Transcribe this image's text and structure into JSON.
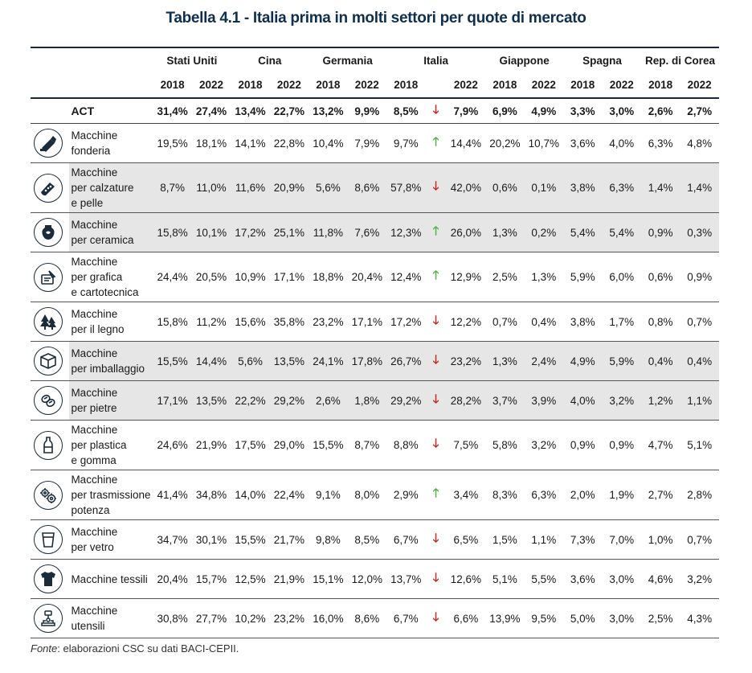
{
  "title": "Tabella 4.1 - Italia prima in molti settori per quote di mercato",
  "countries": [
    "Stati Uniti",
    "Cina",
    "Germania",
    "Italia",
    "Giappone",
    "Spagna",
    "Rep. di Corea"
  ],
  "year_a": "2018",
  "year_b": "2022",
  "act": {
    "label": "ACT",
    "arrow": "down",
    "values": [
      "31,4%",
      "27,4%",
      "13,4%",
      "22,7%",
      "13,2%",
      "9,9%",
      "8,5%",
      "7,9%",
      "6,9%",
      "4,9%",
      "3,3%",
      "3,0%",
      "2,6%",
      "2,7%"
    ]
  },
  "rows": [
    {
      "name_lines": [
        "Macchine",
        "fonderia"
      ],
      "icon": "foundry-icon",
      "arrow": "up",
      "shade": false,
      "values": [
        "19,5%",
        "18,1%",
        "14,1%",
        "22,8%",
        "10,4%",
        "7,9%",
        "9,7%",
        "14,4%",
        "20,2%",
        "10,7%",
        "3,6%",
        "4,0%",
        "6,3%",
        "4,8%"
      ]
    },
    {
      "name_lines": [
        "Macchine",
        "per calzature",
        "e pelle"
      ],
      "icon": "shoe-icon",
      "arrow": "down",
      "shade": true,
      "values": [
        "8,7%",
        "11,0%",
        "11,6%",
        "20,9%",
        "5,6%",
        "8,6%",
        "57,8%",
        "42,0%",
        "0,6%",
        "0,1%",
        "3,8%",
        "6,3%",
        "1,4%",
        "1,4%"
      ]
    },
    {
      "name_lines": [
        "Macchine",
        "per ceramica"
      ],
      "icon": "vase-icon",
      "arrow": "up",
      "shade": true,
      "values": [
        "15,8%",
        "10,1%",
        "17,2%",
        "25,1%",
        "11,8%",
        "7,6%",
        "12,3%",
        "26,0%",
        "1,3%",
        "0,2%",
        "5,4%",
        "5,4%",
        "0,9%",
        "0,3%"
      ]
    },
    {
      "name_lines": [
        "Macchine",
        "per grafica",
        "e cartotecnica"
      ],
      "icon": "printing-icon",
      "arrow": "up",
      "shade": false,
      "values": [
        "24,4%",
        "20,5%",
        "10,9%",
        "17,1%",
        "18,8%",
        "20,4%",
        "12,4%",
        "12,9%",
        "2,5%",
        "1,3%",
        "5,9%",
        "6,0%",
        "0,6%",
        "0,9%"
      ]
    },
    {
      "name_lines": [
        "Macchine",
        "per il legno"
      ],
      "icon": "tree-icon",
      "arrow": "down",
      "shade": false,
      "values": [
        "15,8%",
        "11,2%",
        "15,6%",
        "35,8%",
        "23,2%",
        "17,1%",
        "17,2%",
        "12,2%",
        "0,7%",
        "0,4%",
        "3,8%",
        "1,7%",
        "0,8%",
        "0,7%"
      ]
    },
    {
      "name_lines": [
        "Macchine",
        "per imballaggio"
      ],
      "icon": "box-icon",
      "arrow": "down",
      "shade": true,
      "values": [
        "15,5%",
        "14,4%",
        "5,6%",
        "13,5%",
        "24,1%",
        "17,8%",
        "26,7%",
        "23,2%",
        "1,3%",
        "2,4%",
        "4,9%",
        "5,9%",
        "0,4%",
        "0,4%"
      ]
    },
    {
      "name_lines": [
        "Macchine",
        "per pietre"
      ],
      "icon": "stone-icon",
      "arrow": "down",
      "shade": true,
      "values": [
        "17,1%",
        "13,5%",
        "22,2%",
        "29,2%",
        "2,6%",
        "1,8%",
        "29,2%",
        "28,2%",
        "3,7%",
        "3,9%",
        "4,0%",
        "3,2%",
        "1,2%",
        "1,1%"
      ]
    },
    {
      "name_lines": [
        "Macchine",
        "per plastica",
        "e gomma"
      ],
      "icon": "bottle-icon",
      "arrow": "down",
      "shade": false,
      "values": [
        "24,6%",
        "21,9%",
        "17,5%",
        "29,0%",
        "15,5%",
        "8,7%",
        "8,8%",
        "7,5%",
        "5,8%",
        "3,2%",
        "0,9%",
        "0,9%",
        "4,7%",
        "5,1%"
      ]
    },
    {
      "name_lines": [
        "Macchine",
        "per trasmissione",
        "potenza"
      ],
      "icon": "gears-icon",
      "arrow": "up",
      "shade": false,
      "values": [
        "41,4%",
        "34,8%",
        "14,0%",
        "22,4%",
        "9,1%",
        "8,0%",
        "2,9%",
        "3,4%",
        "8,3%",
        "6,3%",
        "2,0%",
        "1,9%",
        "2,7%",
        "2,8%"
      ]
    },
    {
      "name_lines": [
        "Macchine",
        "per vetro"
      ],
      "icon": "glass-icon",
      "arrow": "down",
      "shade": false,
      "values": [
        "34,7%",
        "30,1%",
        "15,5%",
        "21,7%",
        "9,8%",
        "8,5%",
        "6,7%",
        "6,5%",
        "1,5%",
        "1,1%",
        "7,3%",
        "7,0%",
        "1,0%",
        "0,7%"
      ]
    },
    {
      "name_lines": [
        "Macchine tessili"
      ],
      "icon": "tshirt-icon",
      "arrow": "down",
      "shade": false,
      "values": [
        "20,4%",
        "15,7%",
        "12,5%",
        "21,9%",
        "15,1%",
        "12,0%",
        "13,7%",
        "12,6%",
        "5,1%",
        "5,5%",
        "3,6%",
        "3,0%",
        "4,6%",
        "3,2%"
      ]
    },
    {
      "name_lines": [
        "Macchine",
        "utensili"
      ],
      "icon": "machine-tool-icon",
      "arrow": "down",
      "shade": false,
      "values": [
        "30,8%",
        "27,7%",
        "10,2%",
        "23,2%",
        "16,0%",
        "8,6%",
        "6,7%",
        "6,6%",
        "13,9%",
        "9,5%",
        "5,0%",
        "3,0%",
        "2,5%",
        "4,3%"
      ]
    }
  ],
  "source": {
    "label": "Fonte",
    "text": ": elaborazioni CSC su dati BACI-CEPII."
  },
  "colors": {
    "title": "#0f2f4f",
    "shade": "#e6e6e6",
    "arrow_up": "#55b04a",
    "arrow_down": "#c8281e"
  }
}
